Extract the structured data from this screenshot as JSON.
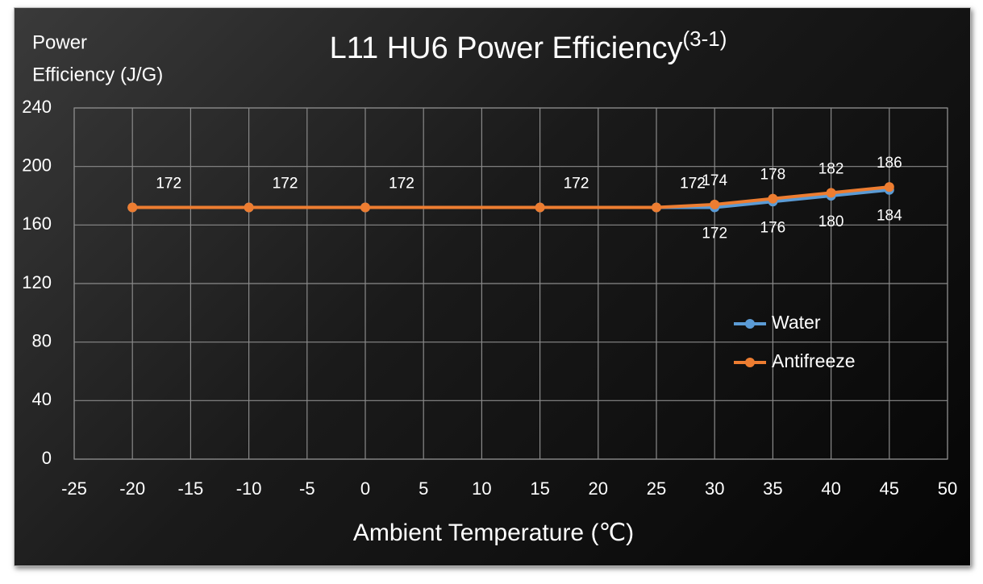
{
  "chart_data": {
    "type": "line",
    "title": "L11 HU6 Power Efficiency",
    "title_superscript": "(3-1)",
    "ylabel": [
      "Power",
      "Efficiency (J/G)"
    ],
    "xlabel": "Ambient Temperature (℃)",
    "x": [
      -20,
      -10,
      0,
      15,
      25,
      30,
      35,
      40,
      45
    ],
    "series": [
      {
        "name": "Water",
        "color": "#5b9bd5",
        "values": [
          172,
          172,
          172,
          172,
          172,
          172,
          176,
          180,
          184
        ]
      },
      {
        "name": "Antifreeze",
        "color": "#ed7d31",
        "values": [
          172,
          172,
          172,
          172,
          172,
          174,
          178,
          182,
          186
        ]
      }
    ],
    "xlim": [
      -25,
      50
    ],
    "xticks": [
      -25,
      -20,
      -15,
      -10,
      -5,
      0,
      5,
      10,
      15,
      20,
      25,
      30,
      35,
      40,
      45,
      50
    ],
    "ylim": [
      0,
      240
    ],
    "yticks": [
      0,
      40,
      80,
      120,
      160,
      200,
      240
    ],
    "grid": true,
    "legend": "right"
  }
}
